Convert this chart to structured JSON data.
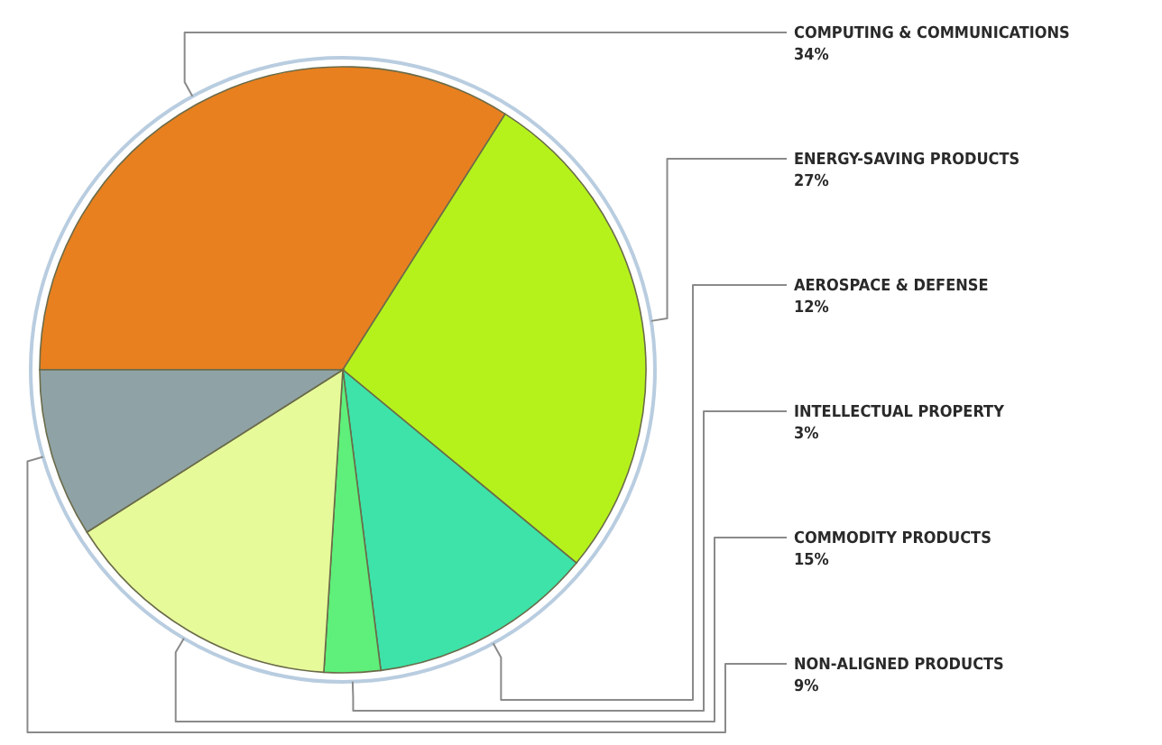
{
  "chart_data": {
    "type": "pie",
    "categories": [
      "COMPUTING & COMMUNICATIONS",
      "ENERGY-SAVING PRODUCTS",
      "AEROSPACE & DEFENSE",
      "INTELLECTUAL PROPERTY",
      "COMMODITY PRODUCTS",
      "NON-ALIGNED PRODUCTS"
    ],
    "values": [
      34,
      27,
      12,
      3,
      15,
      9
    ],
    "value_labels": [
      "34%",
      "27%",
      "12%",
      "3%",
      "15%",
      "9%"
    ],
    "colors": [
      "#e8801f",
      "#b5f21c",
      "#3de3a8",
      "#5ef07a",
      "#e6fa9a",
      "#8fa3a6"
    ]
  }
}
